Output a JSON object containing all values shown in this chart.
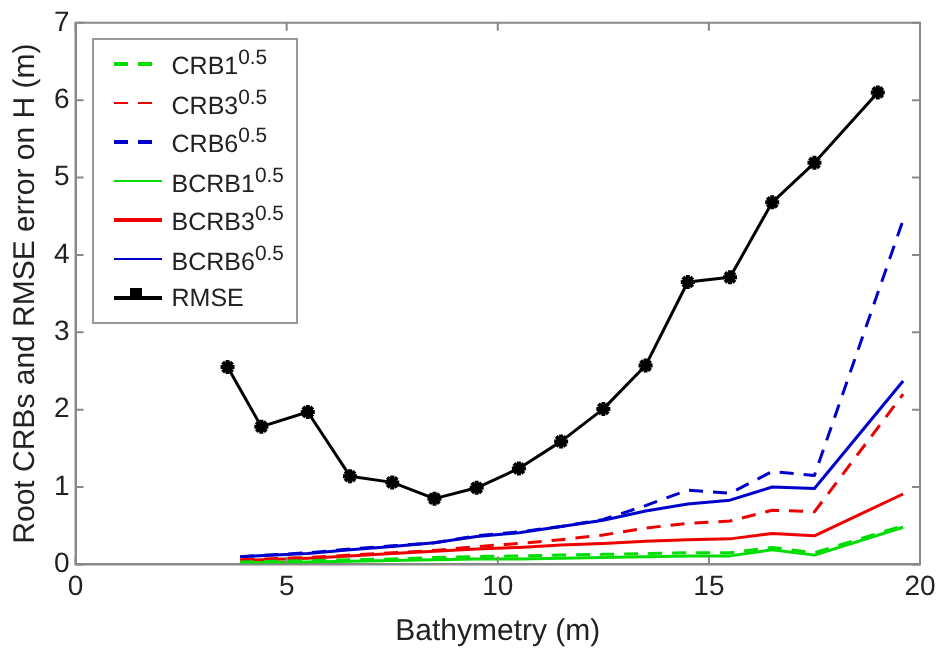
{
  "chart_data": {
    "type": "line",
    "xlabel": "Bathymetry (m)",
    "ylabel": "Root CRBs and RMSE error on H (m)",
    "xlim": [
      0,
      20
    ],
    "xticks": [
      0,
      5,
      10,
      15,
      20
    ],
    "ylim": [
      0,
      7
    ],
    "yticks": [
      0,
      1,
      2,
      3,
      4,
      5,
      6,
      7
    ],
    "grid": false,
    "legend": "top left",
    "series": [
      {
        "name": "CRB1$^{0.5}$",
        "color": "#00dd00",
        "line_style": "dashed",
        "marker": "none",
        "x": [
          3.9,
          5.5,
          6.5,
          7.5,
          8.5,
          9.5,
          10.5,
          11.5,
          12.5,
          13.5,
          14.5,
          15.5,
          16.5,
          17.5,
          19.6
        ],
        "values": [
          0.03,
          0.05,
          0.06,
          0.07,
          0.09,
          0.1,
          0.11,
          0.12,
          0.13,
          0.14,
          0.15,
          0.15,
          0.22,
          0.15,
          0.5
        ]
      },
      {
        "name": "CRB3$^{0.5}$",
        "color": "#ee0000",
        "line_style": "dashed",
        "marker": "none",
        "x": [
          3.9,
          5.5,
          6.5,
          7.5,
          8.5,
          9.5,
          10.5,
          11.5,
          12.5,
          13.5,
          14.5,
          15.5,
          16.5,
          17.5,
          19.6
        ],
        "values": [
          0.06,
          0.09,
          0.12,
          0.15,
          0.18,
          0.23,
          0.27,
          0.32,
          0.38,
          0.47,
          0.53,
          0.56,
          0.7,
          0.68,
          2.2
        ]
      },
      {
        "name": "CRB6$^{0.5}$",
        "color": "#0000cc",
        "line_style": "dashed",
        "marker": "none",
        "x": [
          3.9,
          5.5,
          6.5,
          7.5,
          8.5,
          9.5,
          10.5,
          11.5,
          12.5,
          13.5,
          14.5,
          15.5,
          16.5,
          17.5,
          19.6
        ],
        "values": [
          0.1,
          0.15,
          0.2,
          0.24,
          0.28,
          0.37,
          0.42,
          0.49,
          0.58,
          0.76,
          0.96,
          0.92,
          1.2,
          1.15,
          4.45
        ]
      },
      {
        "name": "BCRB1$^{0.5}$",
        "color": "#00dd00",
        "line_style": "solid",
        "marker": "none",
        "x": [
          3.9,
          5.5,
          6.5,
          7.5,
          8.5,
          9.5,
          10.5,
          11.5,
          12.5,
          13.5,
          14.5,
          15.5,
          16.5,
          17.5,
          19.6
        ],
        "values": [
          0.02,
          0.03,
          0.04,
          0.05,
          0.06,
          0.07,
          0.07,
          0.08,
          0.09,
          0.1,
          0.11,
          0.11,
          0.19,
          0.12,
          0.48
        ]
      },
      {
        "name": "BCRB3$^{0.5}$",
        "color": "#ee0000",
        "line_style": "solid",
        "marker": "none",
        "x": [
          3.9,
          5.5,
          6.5,
          7.5,
          8.5,
          9.5,
          10.5,
          11.5,
          12.5,
          13.5,
          14.5,
          15.5,
          16.5,
          17.5,
          19.6
        ],
        "values": [
          0.05,
          0.08,
          0.11,
          0.14,
          0.17,
          0.2,
          0.22,
          0.25,
          0.27,
          0.3,
          0.32,
          0.33,
          0.4,
          0.37,
          0.91
        ]
      },
      {
        "name": "BCRB6$^{0.5}$",
        "color": "#0000cc",
        "line_style": "solid",
        "marker": "none",
        "x": [
          3.9,
          5.5,
          6.5,
          7.5,
          8.5,
          9.5,
          10.5,
          11.5,
          12.5,
          13.5,
          14.5,
          15.5,
          16.5,
          17.5,
          19.6
        ],
        "values": [
          0.1,
          0.14,
          0.19,
          0.23,
          0.28,
          0.36,
          0.41,
          0.49,
          0.57,
          0.69,
          0.78,
          0.83,
          1.0,
          0.98,
          2.37
        ]
      },
      {
        "name": "RMSE",
        "color": "#000000",
        "line_style": "solid",
        "marker": "cross",
        "x": [
          3.6,
          4.4,
          5.5,
          6.5,
          7.5,
          8.5,
          9.5,
          10.5,
          11.5,
          12.5,
          13.5,
          14.5,
          15.5,
          16.5,
          17.5,
          19.0
        ],
        "values": [
          2.55,
          1.78,
          1.97,
          1.14,
          1.06,
          0.85,
          0.99,
          1.24,
          1.59,
          2.01,
          2.57,
          3.65,
          3.71,
          4.68,
          5.19,
          6.1
        ]
      }
    ]
  }
}
